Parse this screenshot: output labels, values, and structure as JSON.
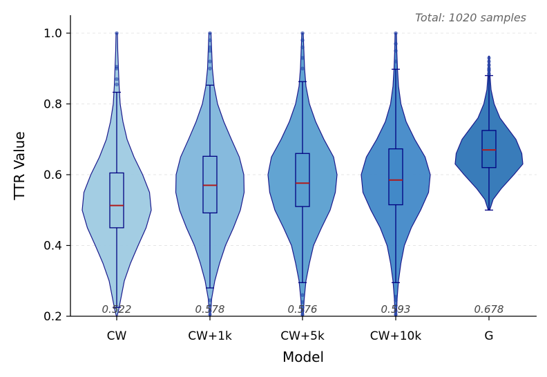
{
  "chart_data": {
    "type": "violin",
    "title": "",
    "xlabel": "Model",
    "ylabel": "TTR Value",
    "annotation": "Total: 1020 samples",
    "ylim": [
      0.2,
      1.05
    ],
    "yticks": [
      "0.2",
      "0.4",
      "0.6",
      "0.8",
      "1.0"
    ],
    "grid": "horizontal-dashed",
    "categories": [
      "CW",
      "CW+1k",
      "CW+5k",
      "CW+10k",
      "G"
    ],
    "series": [
      {
        "category": "CW",
        "color": "#9ecae1",
        "median": 0.513,
        "q1": 0.45,
        "q3": 0.605,
        "whisker_low": 0.225,
        "whisker_high": 0.833,
        "min": 0.2,
        "max": 1.0,
        "mean_label": "0.522",
        "outliers": [
          0.855,
          0.87,
          0.9,
          0.905,
          1.0
        ],
        "density": [
          [
            0.2,
            0.01
          ],
          [
            0.22,
            0.06
          ],
          [
            0.25,
            0.12
          ],
          [
            0.3,
            0.22
          ],
          [
            0.35,
            0.4
          ],
          [
            0.4,
            0.62
          ],
          [
            0.45,
            0.85
          ],
          [
            0.5,
            1.0
          ],
          [
            0.55,
            0.95
          ],
          [
            0.6,
            0.75
          ],
          [
            0.65,
            0.5
          ],
          [
            0.7,
            0.3
          ],
          [
            0.75,
            0.18
          ],
          [
            0.8,
            0.1
          ],
          [
            0.85,
            0.07
          ],
          [
            0.9,
            0.05
          ],
          [
            0.95,
            0.03
          ],
          [
            1.0,
            0.02
          ]
        ]
      },
      {
        "category": "CW+1k",
        "color": "#7fb6db",
        "median": 0.57,
        "q1": 0.492,
        "q3": 0.652,
        "whisker_low": 0.28,
        "whisker_high": 0.853,
        "min": 0.2,
        "max": 1.0,
        "mean_label": "0.578",
        "outliers": [
          0.205,
          0.215,
          0.23,
          0.245,
          0.9,
          0.92,
          0.95,
          0.96,
          0.98,
          1.0
        ],
        "density": [
          [
            0.2,
            0.01
          ],
          [
            0.25,
            0.05
          ],
          [
            0.3,
            0.14
          ],
          [
            0.35,
            0.28
          ],
          [
            0.4,
            0.45
          ],
          [
            0.45,
            0.68
          ],
          [
            0.5,
            0.88
          ],
          [
            0.55,
            0.99
          ],
          [
            0.6,
            0.98
          ],
          [
            0.65,
            0.85
          ],
          [
            0.7,
            0.62
          ],
          [
            0.75,
            0.4
          ],
          [
            0.8,
            0.22
          ],
          [
            0.85,
            0.12
          ],
          [
            0.9,
            0.07
          ],
          [
            0.95,
            0.05
          ],
          [
            1.0,
            0.03
          ]
        ]
      },
      {
        "category": "CW+5k",
        "color": "#5a9fd0",
        "median": 0.576,
        "q1": 0.51,
        "q3": 0.66,
        "whisker_low": 0.295,
        "whisker_high": 0.863,
        "min": 0.2,
        "max": 1.0,
        "mean_label": "0.576",
        "outliers": [
          0.205,
          0.215,
          0.225,
          0.24,
          0.26,
          0.9,
          0.93,
          0.96,
          0.98,
          1.0
        ],
        "density": [
          [
            0.2,
            0.02
          ],
          [
            0.25,
            0.05
          ],
          [
            0.3,
            0.1
          ],
          [
            0.35,
            0.2
          ],
          [
            0.4,
            0.32
          ],
          [
            0.45,
            0.55
          ],
          [
            0.5,
            0.8
          ],
          [
            0.55,
            0.95
          ],
          [
            0.6,
            1.0
          ],
          [
            0.65,
            0.9
          ],
          [
            0.7,
            0.62
          ],
          [
            0.75,
            0.38
          ],
          [
            0.8,
            0.2
          ],
          [
            0.85,
            0.1
          ],
          [
            0.9,
            0.06
          ],
          [
            0.95,
            0.04
          ],
          [
            1.0,
            0.02
          ]
        ]
      },
      {
        "category": "CW+10k",
        "color": "#4289c8",
        "median": 0.585,
        "q1": 0.515,
        "q3": 0.673,
        "whisker_low": 0.295,
        "whisker_high": 0.898,
        "min": 0.2,
        "max": 1.0,
        "mean_label": "0.593",
        "outliers": [
          0.205,
          0.215,
          0.23,
          0.245,
          0.255,
          0.92,
          0.95,
          0.97,
          1.0
        ],
        "density": [
          [
            0.2,
            0.02
          ],
          [
            0.25,
            0.04
          ],
          [
            0.3,
            0.08
          ],
          [
            0.35,
            0.15
          ],
          [
            0.4,
            0.25
          ],
          [
            0.45,
            0.45
          ],
          [
            0.5,
            0.72
          ],
          [
            0.55,
            0.95
          ],
          [
            0.6,
            1.0
          ],
          [
            0.65,
            0.85
          ],
          [
            0.7,
            0.55
          ],
          [
            0.75,
            0.3
          ],
          [
            0.8,
            0.15
          ],
          [
            0.85,
            0.08
          ],
          [
            0.9,
            0.05
          ],
          [
            0.95,
            0.03
          ],
          [
            1.0,
            0.02
          ]
        ]
      },
      {
        "category": "G",
        "color": "#2e75b6",
        "median": 0.67,
        "q1": 0.62,
        "q3": 0.725,
        "whisker_low": 0.5,
        "whisker_high": 0.88,
        "min": 0.5,
        "max": 0.935,
        "mean_label": "0.678",
        "outliers": [
          0.885,
          0.895,
          0.9,
          0.91,
          0.92,
          0.93
        ],
        "density": [
          [
            0.5,
            0.02
          ],
          [
            0.53,
            0.12
          ],
          [
            0.56,
            0.35
          ],
          [
            0.6,
            0.72
          ],
          [
            0.63,
            0.98
          ],
          [
            0.66,
            0.95
          ],
          [
            0.7,
            0.78
          ],
          [
            0.73,
            0.55
          ],
          [
            0.76,
            0.32
          ],
          [
            0.8,
            0.15
          ],
          [
            0.84,
            0.06
          ],
          [
            0.88,
            0.03
          ],
          [
            0.91,
            0.02
          ],
          [
            0.935,
            0.01
          ]
        ]
      }
    ]
  }
}
